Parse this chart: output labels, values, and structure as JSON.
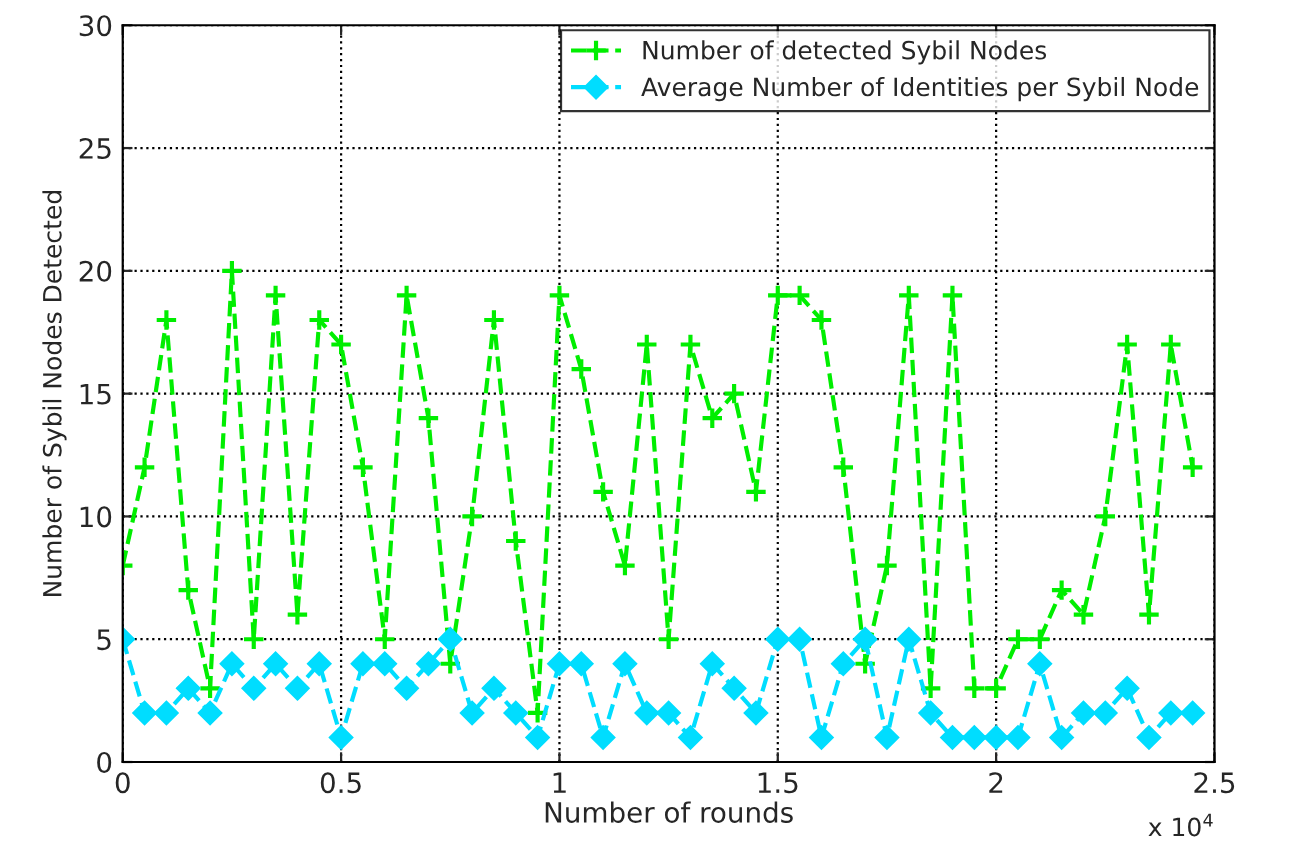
{
  "chart_data": {
    "type": "line",
    "xlabel": "Number of rounds",
    "ylabel": "Number of Sybil Nodes Detected",
    "x": [
      0,
      0.05,
      0.1,
      0.15,
      0.2,
      0.25,
      0.3,
      0.35,
      0.4,
      0.45,
      0.5,
      0.55,
      0.6,
      0.65,
      0.7,
      0.75,
      0.8,
      0.85,
      0.9,
      0.95,
      1,
      1.05,
      1.1,
      1.15,
      1.2,
      1.25,
      1.3,
      1.35,
      1.4,
      1.45,
      1.5,
      1.55,
      1.6,
      1.65,
      1.7,
      1.75,
      1.8,
      1.85,
      1.9,
      1.95,
      2,
      2.05,
      2.1,
      2.15,
      2.2,
      2.25,
      2.3,
      2.35,
      2.4,
      2.45
    ],
    "series": [
      {
        "name": "Number of detected Sybil Nodes",
        "color": "#00ee00",
        "marker": "cross",
        "line_style": "dashed",
        "values": [
          8,
          12,
          18,
          7,
          3,
          20,
          5,
          19,
          6,
          18,
          17,
          12,
          5,
          19,
          14,
          4,
          10,
          18,
          9,
          2,
          19,
          16,
          11,
          8,
          17,
          5,
          17,
          14,
          15,
          11,
          19,
          19,
          18,
          12,
          4,
          8,
          19,
          3,
          19,
          3,
          3,
          5,
          5,
          7,
          6,
          10,
          17,
          6,
          17,
          12
        ]
      },
      {
        "name": "Average Number of Identities per Sybil Node",
        "color": "#00ddff",
        "marker": "diamond",
        "line_style": "dashed",
        "values": [
          5,
          2,
          2,
          3,
          2,
          4,
          3,
          4,
          3,
          4,
          1,
          4,
          4,
          3,
          4,
          5,
          2,
          3,
          2,
          1,
          4,
          4,
          1,
          4,
          2,
          2,
          1,
          4,
          3,
          2,
          5,
          5,
          1,
          4,
          5,
          1,
          5,
          2,
          1,
          1,
          1,
          1,
          4,
          1,
          2,
          2,
          3,
          1,
          2,
          2
        ]
      }
    ],
    "xlim": [
      0,
      2.5
    ],
    "xticks": [
      0,
      0.5,
      1,
      1.5,
      2,
      2.5
    ],
    "ylim": [
      0,
      30
    ],
    "yticks": [
      0,
      5,
      10,
      15,
      20,
      25,
      30
    ],
    "annotations": [
      "x 10$^{4}$"
    ],
    "grid": true,
    "legend": "top right"
  }
}
